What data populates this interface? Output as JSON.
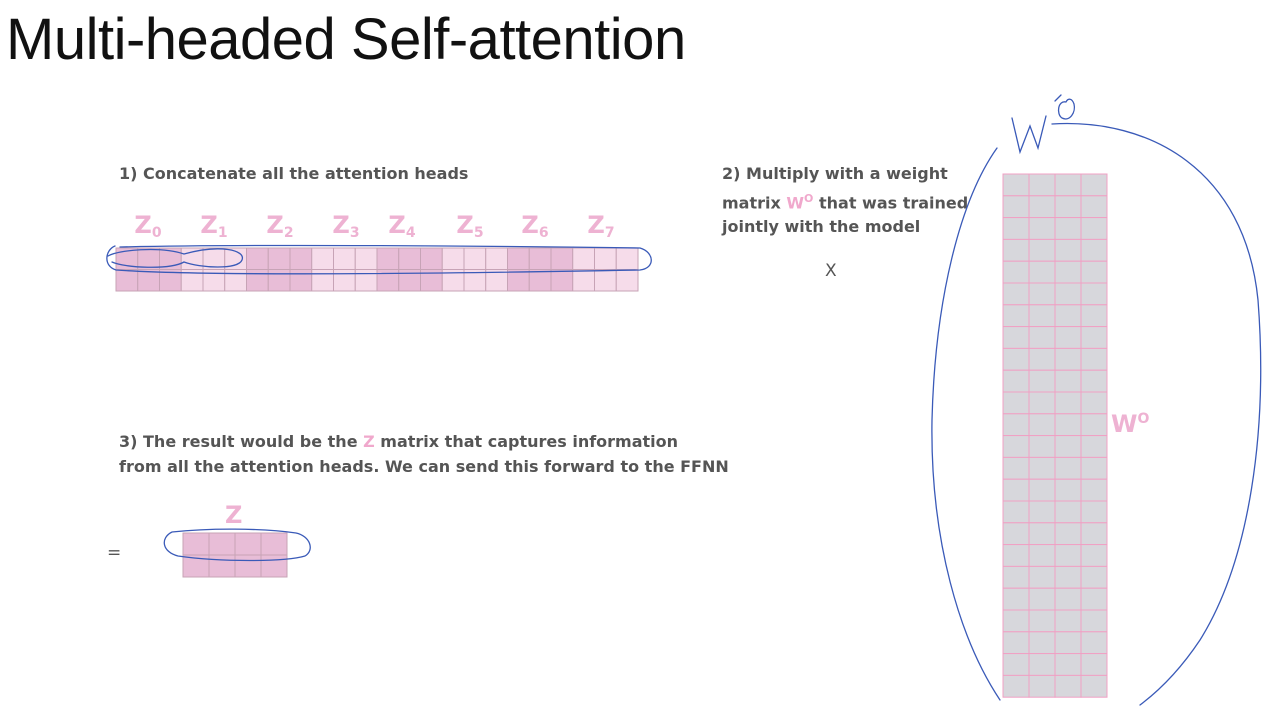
{
  "slide": {
    "title": "Multi-headed Self-attention"
  },
  "step1": {
    "text": "1) Concatenate all the attention heads",
    "heads": [
      {
        "letter": "Z",
        "sub": "0"
      },
      {
        "letter": "Z",
        "sub": "1"
      },
      {
        "letter": "Z",
        "sub": "2"
      },
      {
        "letter": "Z",
        "sub": "3"
      },
      {
        "letter": "Z",
        "sub": "4"
      },
      {
        "letter": "Z",
        "sub": "5"
      },
      {
        "letter": "Z",
        "sub": "6"
      },
      {
        "letter": "Z",
        "sub": "7"
      }
    ]
  },
  "step2": {
    "line1": "2) Multiply with a weight",
    "line2_pre": "matrix ",
    "line2_highlight": "W",
    "line2_sup": "O",
    "line2_post": " that was trained",
    "line3": "jointly with the model",
    "operator": "X",
    "matrix_letter": "W",
    "matrix_sup": "O"
  },
  "step3": {
    "line1_pre": "3) The result would be the ",
    "line1_highlight": "Z",
    "line1_post": " matrix that captures information",
    "line2": "from all the attention heads. We can send this forward to the FFNN",
    "operator": "=",
    "matrix_label": "Z"
  },
  "colors": {
    "pink_dark": "#e8bdd7",
    "pink_light": "#f6dcea",
    "gray_cell": "#d7d7dc",
    "pink_text": "#eeb2d2",
    "ink": "#3a5ab8"
  },
  "diagram": {
    "concat_columns_per_head": 3,
    "concat_rows": 2,
    "weight_matrix_columns": 4,
    "weight_matrix_rows": 24,
    "result_columns": 4,
    "result_rows": 2
  }
}
